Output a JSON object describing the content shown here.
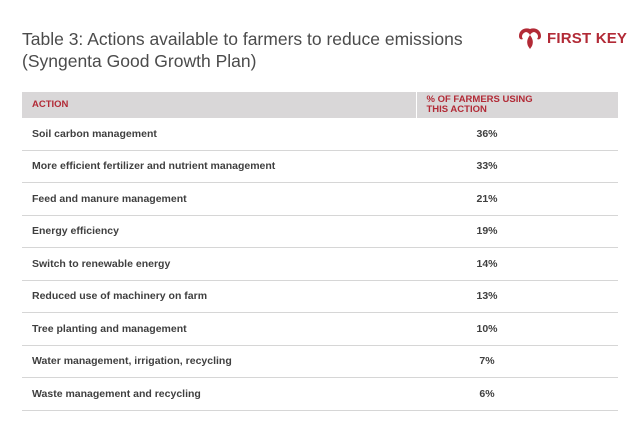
{
  "title": {
    "line1": "Table 3: Actions available to farmers to reduce emissions",
    "line2": "(Syngenta Good Growth Plan)"
  },
  "logo": {
    "text": "FIRST KEY",
    "icon": "wing-logo-icon",
    "color": "#b22a36"
  },
  "table": {
    "headers": {
      "action": "ACTION",
      "pct_line1": "% OF FARMERS USING",
      "pct_line2": "THIS ACTION"
    },
    "rows": [
      {
        "action": "Soil carbon management",
        "pct": "36%"
      },
      {
        "action": "More efficient fertilizer and nutrient management",
        "pct": "33%"
      },
      {
        "action": "Feed and manure management",
        "pct": "21%"
      },
      {
        "action": "Energy efficiency",
        "pct": "19%"
      },
      {
        "action": "Switch to renewable energy",
        "pct": "14%"
      },
      {
        "action": "Reduced use of machinery on farm",
        "pct": "13%"
      },
      {
        "action": "Tree planting and management",
        "pct": "10%"
      },
      {
        "action": "Water management, irrigation, recycling",
        "pct": "7%"
      },
      {
        "action": "Waste management and recycling",
        "pct": "6%"
      }
    ]
  }
}
